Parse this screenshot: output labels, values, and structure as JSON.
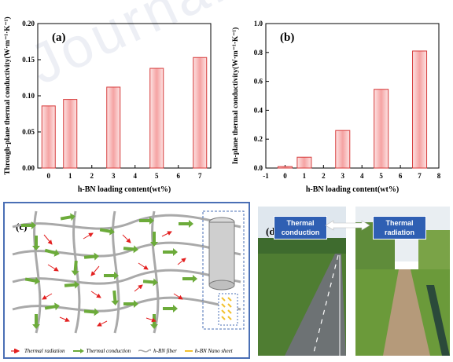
{
  "chart_data": [
    {
      "type": "bar",
      "panel_label": "(a)",
      "categories": [
        "0",
        "1",
        "3",
        "5",
        "7"
      ],
      "x": [
        0,
        1,
        3,
        5,
        7
      ],
      "values": [
        0.086,
        0.095,
        0.112,
        0.138,
        0.153
      ],
      "xticks": [
        "0",
        "1",
        "2",
        "3",
        "4",
        "5",
        "6",
        "7"
      ],
      "xlim": [
        -0.5,
        7.5
      ],
      "ylim": [
        0,
        0.2
      ],
      "yticks": [
        "0.00",
        "0.05",
        "0.10",
        "0.15",
        "0.20"
      ],
      "xlabel": "h-BN loading content(wt%)",
      "ylabel": "Through-plane thermal conductivity(W·m⁻¹·K⁻¹)",
      "bar_color": "#f5a3a3",
      "bar_edge": "#d63a3a"
    },
    {
      "type": "bar",
      "panel_label": "(b)",
      "categories": [
        "0",
        "1",
        "3",
        "5",
        "7"
      ],
      "x": [
        0,
        1,
        3,
        5,
        7
      ],
      "values": [
        0.01,
        0.075,
        0.26,
        0.545,
        0.81
      ],
      "xticks": [
        "-1",
        "0",
        "1",
        "2",
        "3",
        "4",
        "5",
        "6",
        "7",
        "8"
      ],
      "xlim": [
        -1,
        8
      ],
      "ylim": [
        0,
        1.0
      ],
      "yticks": [
        "0.0",
        "0.2",
        "0.4",
        "0.6",
        "0.8",
        "1.0"
      ],
      "xlabel": "h-BN loading content(wt%)",
      "ylabel": "In-plane thermal conductivity(W·m⁻¹·K⁻¹)",
      "bar_color": "#f5a3a3",
      "bar_edge": "#d63a3a"
    }
  ],
  "panel_c": {
    "label": "(c)",
    "legend": [
      {
        "label": "Thermal radiation",
        "icon": "red-arrow"
      },
      {
        "label": "Thermal conduction",
        "icon": "green-arrow"
      },
      {
        "label": "h-BN fiber",
        "icon": "gray-wave"
      },
      {
        "label": "h-BN Nano sheet",
        "icon": "yellow-line"
      }
    ],
    "colors": {
      "fiber": "#a9a9a9",
      "conduction": "#6cab3a",
      "radiation": "#e32020",
      "nanosheet": "#f2c12e",
      "border": "#4a6fb5"
    }
  },
  "panel_d": {
    "label": "(d)",
    "left_tag": "Thermal\nconduction",
    "right_tag": "Thermal\nradiation"
  },
  "watermark": "Journal"
}
